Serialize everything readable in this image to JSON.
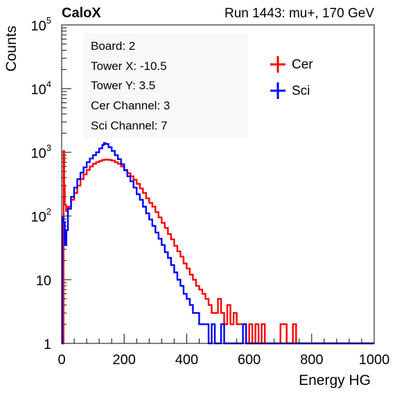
{
  "header": {
    "brand": "CaloX",
    "run_info": "Run 1443: mu+, 170 GeV"
  },
  "info_box": {
    "lines": [
      "Board: 2",
      "Tower X: -10.5",
      "Tower Y: 3.5",
      "Cer Channel: 3",
      "Sci Channel: 7"
    ]
  },
  "chart_data": {
    "type": "line",
    "title": "",
    "xlabel": "Energy HG",
    "ylabel": "Counts",
    "xlim": [
      0,
      1000
    ],
    "ylim": [
      1,
      100000
    ],
    "y_scale": "log",
    "x_ticks": [
      0,
      200,
      400,
      600,
      800,
      1000
    ],
    "y_ticks": [
      {
        "value": 1,
        "label": "1"
      },
      {
        "value": 10,
        "label": "10"
      },
      {
        "value": 100,
        "label": "10",
        "exp": "2"
      },
      {
        "value": 1000,
        "label": "10",
        "exp": "3"
      },
      {
        "value": 10000,
        "label": "10",
        "exp": "4"
      },
      {
        "value": 100000,
        "label": "10",
        "exp": "5"
      }
    ],
    "grid": false,
    "legend": "top-right",
    "series": [
      {
        "name": "Cer",
        "color": "#ff0000",
        "points": [
          [
            0,
            1
          ],
          [
            4,
            1
          ],
          [
            6,
            1050
          ],
          [
            8,
            300
          ],
          [
            10,
            150
          ],
          [
            14,
            120
          ],
          [
            20,
            140
          ],
          [
            30,
            180
          ],
          [
            40,
            230
          ],
          [
            50,
            300
          ],
          [
            60,
            380
          ],
          [
            70,
            450
          ],
          [
            80,
            530
          ],
          [
            90,
            600
          ],
          [
            100,
            660
          ],
          [
            110,
            700
          ],
          [
            120,
            730
          ],
          [
            130,
            760
          ],
          [
            140,
            770
          ],
          [
            150,
            760
          ],
          [
            160,
            740
          ],
          [
            170,
            700
          ],
          [
            180,
            660
          ],
          [
            190,
            600
          ],
          [
            200,
            530
          ],
          [
            210,
            470
          ],
          [
            220,
            420
          ],
          [
            230,
            370
          ],
          [
            240,
            320
          ],
          [
            250,
            270
          ],
          [
            260,
            230
          ],
          [
            270,
            190
          ],
          [
            280,
            160
          ],
          [
            290,
            140
          ],
          [
            300,
            115
          ],
          [
            310,
            95
          ],
          [
            320,
            78
          ],
          [
            330,
            65
          ],
          [
            340,
            52
          ],
          [
            350,
            43
          ],
          [
            360,
            34
          ],
          [
            370,
            28
          ],
          [
            380,
            23
          ],
          [
            390,
            18
          ],
          [
            400,
            15
          ],
          [
            410,
            12
          ],
          [
            420,
            10
          ],
          [
            430,
            8
          ],
          [
            440,
            7
          ],
          [
            450,
            6
          ],
          [
            460,
            5
          ],
          [
            470,
            4
          ],
          [
            480,
            3
          ],
          [
            490,
            3
          ],
          [
            500,
            5
          ],
          [
            510,
            3
          ],
          [
            520,
            2
          ],
          [
            530,
            4
          ],
          [
            540,
            2
          ],
          [
            550,
            3
          ],
          [
            560,
            2
          ],
          [
            570,
            2
          ],
          [
            580,
            2
          ],
          [
            590,
            1
          ],
          [
            600,
            2
          ],
          [
            610,
            1
          ],
          [
            620,
            2
          ],
          [
            630,
            1
          ],
          [
            640,
            2
          ],
          [
            650,
            1
          ],
          [
            660,
            1
          ],
          [
            700,
            2
          ],
          [
            720,
            1
          ],
          [
            740,
            2
          ],
          [
            750,
            1
          ],
          [
            1000,
            1
          ]
        ]
      },
      {
        "name": "Sci",
        "color": "#0000ff",
        "points": [
          [
            0,
            1
          ],
          [
            2,
            95
          ],
          [
            6,
            80
          ],
          [
            10,
            35
          ],
          [
            15,
            60
          ],
          [
            20,
            130
          ],
          [
            30,
            200
          ],
          [
            40,
            280
          ],
          [
            50,
            380
          ],
          [
            60,
            480
          ],
          [
            70,
            580
          ],
          [
            80,
            700
          ],
          [
            90,
            800
          ],
          [
            100,
            900
          ],
          [
            110,
            1000
          ],
          [
            120,
            1150
          ],
          [
            130,
            1300
          ],
          [
            135,
            1400
          ],
          [
            140,
            1350
          ],
          [
            150,
            1200
          ],
          [
            160,
            1050
          ],
          [
            170,
            900
          ],
          [
            180,
            780
          ],
          [
            190,
            650
          ],
          [
            200,
            520
          ],
          [
            210,
            420
          ],
          [
            220,
            350
          ],
          [
            230,
            280
          ],
          [
            240,
            220
          ],
          [
            250,
            180
          ],
          [
            260,
            140
          ],
          [
            270,
            110
          ],
          [
            280,
            88
          ],
          [
            290,
            70
          ],
          [
            300,
            55
          ],
          [
            310,
            44
          ],
          [
            320,
            35
          ],
          [
            330,
            27
          ],
          [
            340,
            22
          ],
          [
            350,
            17
          ],
          [
            360,
            13
          ],
          [
            370,
            10
          ],
          [
            380,
            8
          ],
          [
            390,
            6
          ],
          [
            400,
            5
          ],
          [
            410,
            4
          ],
          [
            420,
            3
          ],
          [
            430,
            3
          ],
          [
            440,
            2
          ],
          [
            450,
            2
          ],
          [
            460,
            2
          ],
          [
            470,
            1
          ],
          [
            480,
            2
          ],
          [
            490,
            1
          ],
          [
            500,
            1
          ],
          [
            510,
            2
          ],
          [
            520,
            1
          ],
          [
            540,
            1
          ],
          [
            560,
            1
          ],
          [
            580,
            2
          ],
          [
            590,
            1
          ],
          [
            1000,
            1
          ]
        ]
      }
    ]
  }
}
